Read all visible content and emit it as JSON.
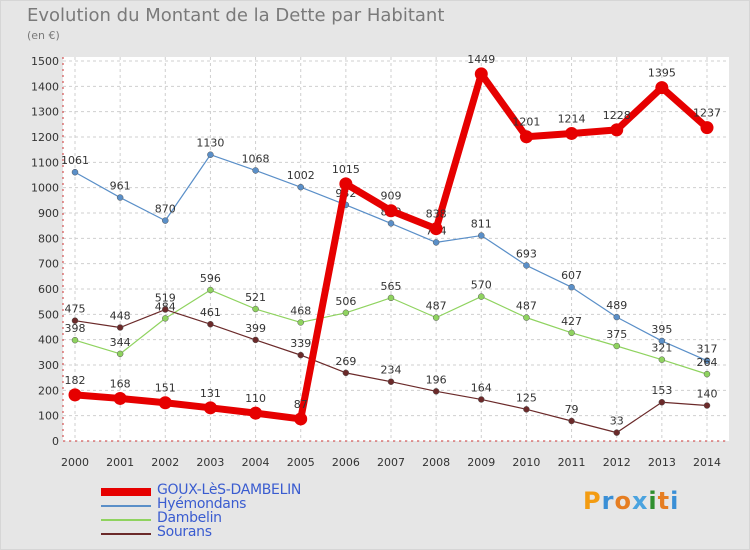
{
  "title": "Evolution du Montant de la Dette par Habitant",
  "subtitle": "(en €)",
  "logo": {
    "text": "Proxiti",
    "letter_colors": [
      "#f39c12",
      "#3a8fd6",
      "#e67e22",
      "#4aa3df",
      "#2f8f2f",
      "#e67e22",
      "#3a8fd6"
    ]
  },
  "chart_data": {
    "type": "line",
    "categories": [
      "2000",
      "2001",
      "2002",
      "2003",
      "2004",
      "2005",
      "2006",
      "2007",
      "2008",
      "2009",
      "2010",
      "2011",
      "2012",
      "2013",
      "2014"
    ],
    "ylim": [
      0,
      1500
    ],
    "yticks": [
      0,
      100,
      200,
      300,
      400,
      500,
      600,
      700,
      800,
      900,
      1000,
      1100,
      1200,
      1300,
      1400,
      1500
    ],
    "grid": true,
    "legend_position": "bottom-left",
    "series": [
      {
        "name": "Hyémondans",
        "color": "#5a8fc8",
        "values": [
          1061,
          961,
          870,
          1130,
          1068,
          1002,
          932,
          859,
          784,
          811,
          693,
          607,
          489,
          395,
          317
        ]
      },
      {
        "name": "Dambelin",
        "color": "#8fd35f",
        "values": [
          398,
          344,
          484,
          596,
          521,
          468,
          506,
          565,
          487,
          570,
          487,
          427,
          375,
          321,
          264
        ]
      },
      {
        "name": "Sourans",
        "color": "#6b2a2a",
        "values": [
          475,
          448,
          519,
          461,
          399,
          339,
          269,
          234,
          196,
          164,
          125,
          79,
          33,
          153,
          140
        ]
      },
      {
        "name": "GOUX-LèS-DAMBELIN",
        "color": "#e60000",
        "values": [
          182,
          168,
          151,
          131,
          110,
          87,
          1015,
          909,
          838,
          1449,
          1201,
          1214,
          1228,
          1395,
          1237
        ]
      }
    ]
  },
  "legend": [
    {
      "label": "GOUX-LèS-DAMBELIN",
      "color": "#e60000",
      "thick": true
    },
    {
      "label": "Hyémondans",
      "color": "#5a8fc8",
      "thick": false
    },
    {
      "label": "Dambelin",
      "color": "#8fd35f",
      "thick": false
    },
    {
      "label": "Sourans",
      "color": "#6b2a2a",
      "thick": false
    }
  ]
}
